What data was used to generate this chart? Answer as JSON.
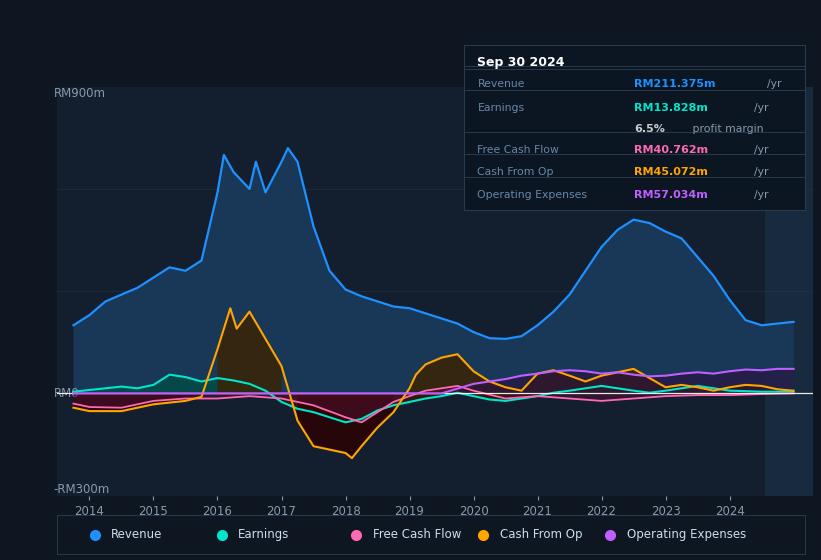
{
  "bg_color": "#0e1621",
  "plot_bg_color": "#131f2e",
  "title": "Sep 30 2024",
  "ylabel_top": "RM900m",
  "ylabel_zero": "RM0",
  "ylabel_bottom": "-RM300m",
  "ylim": [
    -300,
    900
  ],
  "xlim": [
    2013.5,
    2025.3
  ],
  "xticks": [
    2014,
    2015,
    2016,
    2017,
    2018,
    2019,
    2020,
    2021,
    2022,
    2023,
    2024
  ],
  "info_box": {
    "date": "Sep 30 2024",
    "rows": [
      {
        "label": "Revenue",
        "value": "RM211.375m",
        "unit": "/yr",
        "color": "#1e90ff"
      },
      {
        "label": "Earnings",
        "value": "RM13.828m",
        "unit": "/yr",
        "color": "#00e5cc"
      },
      {
        "label": "",
        "value": "6.5%",
        "unit": " profit margin",
        "color": "#cccccc"
      },
      {
        "label": "Free Cash Flow",
        "value": "RM40.762m",
        "unit": "/yr",
        "color": "#ff69b4"
      },
      {
        "label": "Cash From Op",
        "value": "RM45.072m",
        "unit": "/yr",
        "color": "#ffa500"
      },
      {
        "label": "Operating Expenses",
        "value": "RM57.034m",
        "unit": "/yr",
        "color": "#bf5fff"
      }
    ]
  },
  "series": {
    "revenue": {
      "color": "#1e90ff",
      "fill_color": "#1a3a5c",
      "x": [
        2013.75,
        2014.0,
        2014.25,
        2014.5,
        2014.75,
        2015.0,
        2015.25,
        2015.5,
        2015.75,
        2016.0,
        2016.1,
        2016.25,
        2016.5,
        2016.6,
        2016.75,
        2017.0,
        2017.1,
        2017.25,
        2017.5,
        2017.75,
        2018.0,
        2018.25,
        2018.5,
        2018.75,
        2019.0,
        2019.25,
        2019.5,
        2019.75,
        2020.0,
        2020.25,
        2020.5,
        2020.75,
        2021.0,
        2021.25,
        2021.5,
        2021.75,
        2022.0,
        2022.25,
        2022.5,
        2022.75,
        2023.0,
        2023.25,
        2023.5,
        2023.75,
        2024.0,
        2024.25,
        2024.5,
        2024.75,
        2025.0
      ],
      "y": [
        200,
        230,
        270,
        290,
        310,
        340,
        370,
        360,
        390,
        590,
        700,
        650,
        600,
        680,
        590,
        680,
        720,
        680,
        490,
        360,
        305,
        285,
        270,
        255,
        250,
        235,
        220,
        205,
        180,
        162,
        160,
        168,
        200,
        240,
        290,
        360,
        430,
        480,
        510,
        500,
        475,
        455,
        400,
        345,
        275,
        215,
        200,
        205,
        210
      ]
    },
    "earnings": {
      "color": "#00e5cc",
      "fill_color": "#004d44",
      "x": [
        2013.75,
        2014.0,
        2014.25,
        2014.5,
        2014.75,
        2015.0,
        2015.25,
        2015.5,
        2015.75,
        2016.0,
        2016.25,
        2016.5,
        2016.75,
        2017.0,
        2017.25,
        2017.5,
        2017.75,
        2018.0,
        2018.25,
        2018.5,
        2018.75,
        2019.0,
        2019.25,
        2019.5,
        2019.75,
        2020.0,
        2020.25,
        2020.5,
        2020.75,
        2021.0,
        2021.25,
        2021.5,
        2021.75,
        2022.0,
        2022.25,
        2022.5,
        2022.75,
        2023.0,
        2023.25,
        2023.5,
        2023.75,
        2024.0,
        2024.5,
        2025.0
      ],
      "y": [
        5,
        10,
        15,
        20,
        15,
        25,
        55,
        48,
        35,
        45,
        38,
        28,
        8,
        -25,
        -45,
        -55,
        -70,
        -85,
        -75,
        -50,
        -35,
        -25,
        -15,
        -8,
        2,
        -8,
        -18,
        -22,
        -15,
        -8,
        2,
        8,
        15,
        22,
        15,
        8,
        2,
        8,
        15,
        22,
        15,
        8,
        5,
        5
      ]
    },
    "free_cash_flow": {
      "color": "#ff69b4",
      "fill_color": "#4a1030",
      "x": [
        2013.75,
        2014.0,
        2014.5,
        2015.0,
        2015.5,
        2016.0,
        2016.5,
        2017.0,
        2017.5,
        2018.0,
        2018.25,
        2018.5,
        2018.75,
        2019.0,
        2019.25,
        2019.5,
        2019.75,
        2020.0,
        2020.5,
        2021.0,
        2021.5,
        2022.0,
        2022.5,
        2023.0,
        2023.5,
        2024.0,
        2024.5,
        2025.0
      ],
      "y": [
        -30,
        -40,
        -42,
        -22,
        -15,
        -15,
        -8,
        -15,
        -35,
        -70,
        -85,
        -55,
        -25,
        -8,
        8,
        15,
        22,
        8,
        -15,
        -8,
        -15,
        -22,
        -15,
        -8,
        -5,
        -5,
        -2,
        0
      ]
    },
    "cash_from_op": {
      "color": "#ffa500",
      "fill_color": "#3d2200",
      "x": [
        2013.75,
        2014.0,
        2014.5,
        2015.0,
        2015.5,
        2015.75,
        2016.0,
        2016.1,
        2016.2,
        2016.3,
        2016.5,
        2016.75,
        2017.0,
        2017.25,
        2017.5,
        2017.75,
        2018.0,
        2018.1,
        2018.25,
        2018.5,
        2018.75,
        2019.0,
        2019.1,
        2019.25,
        2019.5,
        2019.75,
        2020.0,
        2020.25,
        2020.5,
        2020.75,
        2021.0,
        2021.25,
        2021.5,
        2021.75,
        2022.0,
        2022.25,
        2022.5,
        2022.75,
        2023.0,
        2023.25,
        2023.5,
        2023.75,
        2024.0,
        2024.25,
        2024.5,
        2024.75,
        2025.0
      ],
      "y": [
        -42,
        -52,
        -52,
        -32,
        -22,
        -10,
        130,
        190,
        250,
        190,
        240,
        160,
        80,
        -80,
        -155,
        -165,
        -175,
        -190,
        -155,
        -100,
        -55,
        15,
        55,
        85,
        105,
        115,
        65,
        35,
        18,
        8,
        58,
        68,
        52,
        35,
        52,
        62,
        72,
        45,
        18,
        25,
        18,
        8,
        18,
        25,
        22,
        12,
        8
      ]
    },
    "operating_expenses": {
      "color": "#bf5fff",
      "fill_color": "#2a1040",
      "x": [
        2013.75,
        2014.5,
        2015.0,
        2015.5,
        2016.0,
        2016.5,
        2017.0,
        2017.5,
        2018.0,
        2018.5,
        2019.0,
        2019.5,
        2020.0,
        2020.25,
        2020.5,
        2020.75,
        2021.0,
        2021.25,
        2021.5,
        2021.75,
        2022.0,
        2022.25,
        2022.5,
        2022.75,
        2023.0,
        2023.25,
        2023.5,
        2023.75,
        2024.0,
        2024.25,
        2024.5,
        2024.75,
        2025.0
      ],
      "y": [
        0,
        0,
        0,
        0,
        0,
        0,
        0,
        0,
        0,
        0,
        0,
        0,
        28,
        35,
        42,
        52,
        58,
        65,
        68,
        65,
        58,
        62,
        55,
        50,
        52,
        58,
        62,
        58,
        65,
        70,
        68,
        72,
        72
      ]
    }
  },
  "legend": [
    {
      "label": "Revenue",
      "color": "#1e90ff"
    },
    {
      "label": "Earnings",
      "color": "#00e5cc"
    },
    {
      "label": "Free Cash Flow",
      "color": "#ff69b4"
    },
    {
      "label": "Cash From Op",
      "color": "#ffa500"
    },
    {
      "label": "Operating Expenses",
      "color": "#bf5fff"
    }
  ]
}
